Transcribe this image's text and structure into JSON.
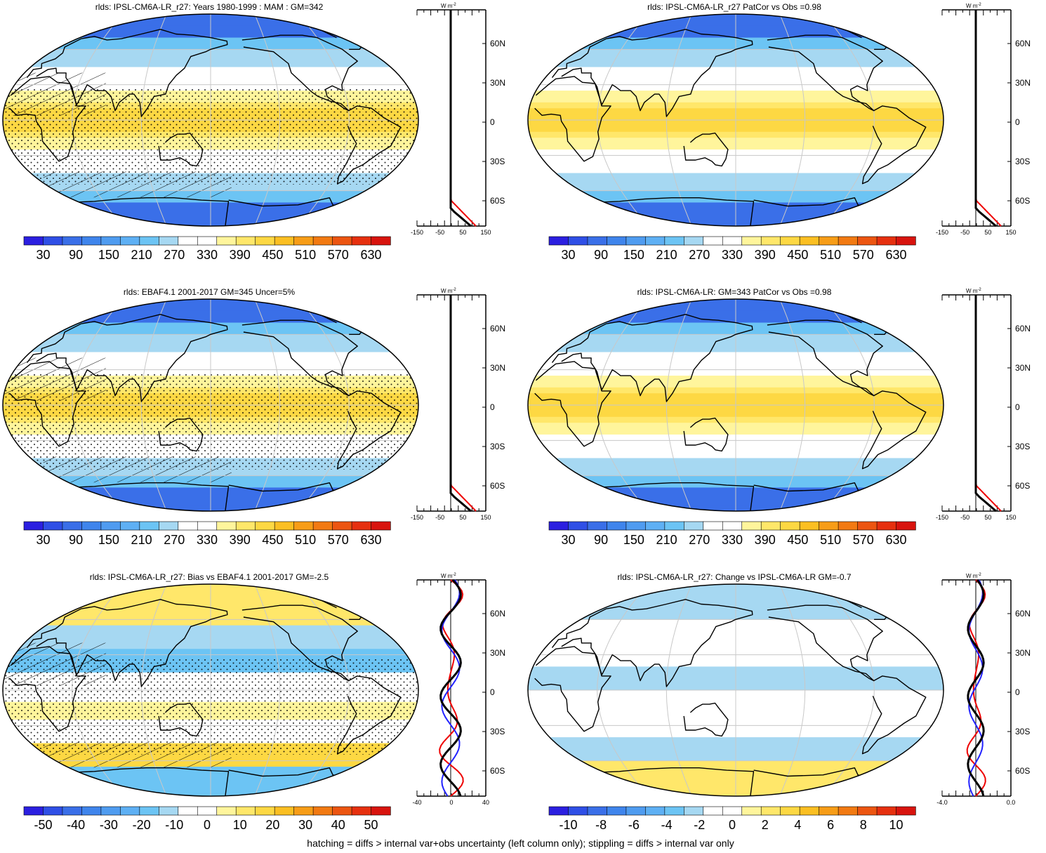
{
  "footer": "hatching = diffs > internal var+obs uncertainty (left column only); stippling = diffs > internal var only",
  "zonal_unit": "W m",
  "zonal_unit_exp": "-2",
  "lat_labels": [
    "60N",
    "30N",
    "0",
    "30S",
    "60S"
  ],
  "colors": {
    "abs": [
      "#2b1fe0",
      "#2f4fe6",
      "#3a6fe8",
      "#3f85ec",
      "#4f9cf0",
      "#5eb0f4",
      "#6cc4f4",
      "#a6d8f2",
      "#ffffff",
      "#ffffff",
      "#fff59c",
      "#ffe76a",
      "#fdd843",
      "#fbbf22",
      "#f79d17",
      "#f27a12",
      "#ec5511",
      "#e6300f",
      "#d8140e"
    ],
    "diff": [
      "#2b1fe0",
      "#2f4fe6",
      "#3a6fe8",
      "#3f85ec",
      "#4f9cf0",
      "#5eb0f4",
      "#6cc4f4",
      "#a6d8f2",
      "#ffffff",
      "#ffffff",
      "#fff59c",
      "#ffe76a",
      "#fdd843",
      "#fbbf22",
      "#f79d17",
      "#f27a12",
      "#ec5511",
      "#e6300f",
      "#d8140e"
    ]
  },
  "panels": [
    {
      "title": "rlds: IPSL-CM6A-LR_r27: Years 1980-1999 : MAM : GM=342",
      "map": "absolute",
      "stipple": true,
      "hatch": true,
      "colorbar_labels": [
        "30",
        "90",
        "150",
        "210",
        "270",
        "330",
        "390",
        "450",
        "510",
        "570",
        "630"
      ],
      "zonal_xticks": [
        "-150",
        "-50",
        "50",
        "150"
      ]
    },
    {
      "title": "rlds: IPSL-CM6A-LR_r27 PatCor vs Obs =0.98",
      "map": "absolute",
      "stipple": false,
      "hatch": false,
      "colorbar_labels": [
        "30",
        "90",
        "150",
        "210",
        "270",
        "330",
        "390",
        "450",
        "510",
        "570",
        "630"
      ],
      "zonal_xticks": [
        "-150",
        "-50",
        "50",
        "150"
      ]
    },
    {
      "title": "rlds: EBAF4.1 2001-2017 GM=345 Uncer=5%",
      "map": "absolute",
      "stipple": true,
      "hatch": true,
      "colorbar_labels": [
        "30",
        "90",
        "150",
        "210",
        "270",
        "330",
        "390",
        "450",
        "510",
        "570",
        "630"
      ],
      "zonal_xticks": [
        "-150",
        "-50",
        "50",
        "150"
      ]
    },
    {
      "title": "rlds: IPSL-CM6A-LR: GM=343 PatCor vs Obs =0.98",
      "map": "absolute",
      "stipple": false,
      "hatch": false,
      "colorbar_labels": [
        "30",
        "90",
        "150",
        "210",
        "270",
        "330",
        "390",
        "450",
        "510",
        "570",
        "630"
      ],
      "zonal_xticks": [
        "-150",
        "-50",
        "50",
        "150"
      ]
    },
    {
      "title": "rlds: IPSL-CM6A-LR_r27: Bias vs EBAF4.1 2001-2017 GM=-2.5",
      "map": "bias",
      "stipple": true,
      "hatch": true,
      "colorbar_labels": [
        "-50",
        "-40",
        "-30",
        "-20",
        "-10",
        "0",
        "10",
        "20",
        "30",
        "40",
        "50"
      ],
      "zonal_xticks": [
        "-40",
        "0",
        "40"
      ]
    },
    {
      "title": "rlds: IPSL-CM6A-LR_r27: Change vs IPSL-CM6A-LR GM=-0.7",
      "map": "change",
      "stipple": false,
      "hatch": false,
      "colorbar_labels": [
        "-10",
        "-8",
        "-6",
        "-4",
        "-2",
        "0",
        "2",
        "4",
        "6",
        "8",
        "10"
      ],
      "zonal_xticks": [
        "-4.0",
        "0.0"
      ]
    }
  ]
}
